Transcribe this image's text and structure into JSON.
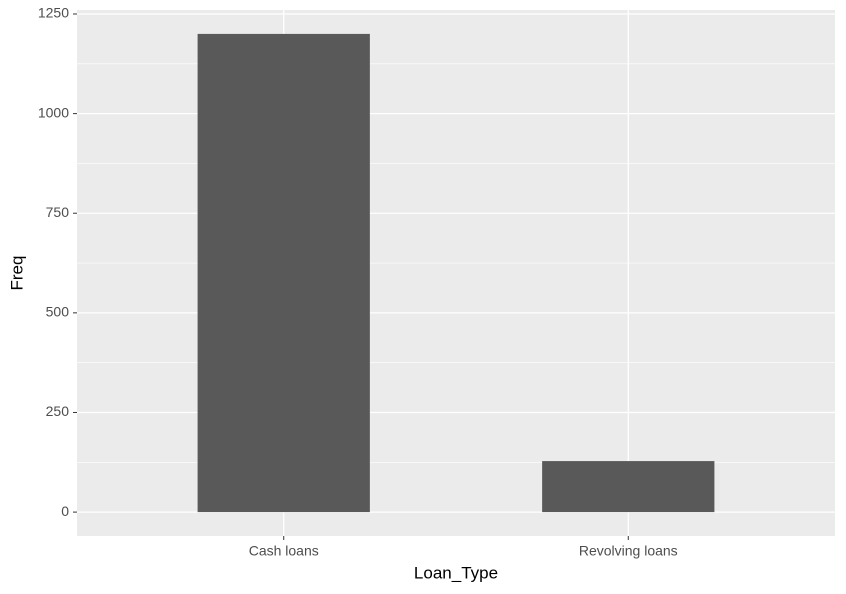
{
  "chart_data": {
    "type": "bar",
    "x_label": "Loan_Type",
    "y_label": "Freq",
    "categories": [
      "Cash loans",
      "Revolving loans"
    ],
    "values": [
      1200,
      128
    ],
    "color": "#595959",
    "ylim": [
      -60,
      1260
    ],
    "yticks": [
      0,
      250,
      500,
      750,
      1000,
      1250
    ],
    "y_minor_ticks": [
      125,
      375,
      625,
      875,
      1125
    ],
    "grid": true
  }
}
